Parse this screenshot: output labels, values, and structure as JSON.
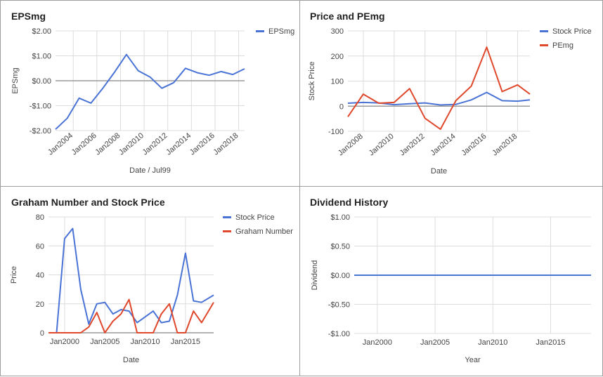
{
  "colors": {
    "blue": "#4a73d6",
    "red": "#e0482c",
    "grid": "#dcdcdc",
    "zero": "#9a9a9a",
    "text": "#444444"
  },
  "chart_data": [
    {
      "type": "line",
      "title": "EPSmg",
      "xlabel": "Date / Jul99",
      "ylabel": "EPSmg",
      "xlim": [
        2002.5,
        2018.5
      ],
      "ylim": [
        -2,
        2
      ],
      "yticks": [
        2,
        1,
        0,
        -1,
        -2
      ],
      "ytick_labels": [
        "$2.00",
        "$1.00",
        "$0.00",
        "-$1.00",
        "-$2.00"
      ],
      "xticks": [
        2004,
        2006,
        2008,
        2010,
        2012,
        2014,
        2016,
        2018
      ],
      "xtick_labels": [
        "Jan2004",
        "Jan2006",
        "Jan2008",
        "Jan2010",
        "Jan2012",
        "Jan2014",
        "Jan2016",
        "Jan2018"
      ],
      "x_tick_rotate": true,
      "legend_position": "top-right",
      "series": [
        {
          "name": "EPSmg",
          "color": "#4a73d6",
          "x": [
            2002.5,
            2003.5,
            2004.5,
            2005.5,
            2006.5,
            2007.5,
            2008.5,
            2009.5,
            2010.5,
            2011.5,
            2012.5,
            2013.5,
            2014.5,
            2015.5,
            2016.5,
            2017.5,
            2018.5
          ],
          "y": [
            -1.95,
            -1.5,
            -0.7,
            -0.9,
            -0.3,
            0.35,
            1.05,
            0.4,
            0.15,
            -0.3,
            -0.08,
            0.5,
            0.32,
            0.22,
            0.37,
            0.25,
            0.48
          ]
        }
      ]
    },
    {
      "type": "line",
      "title": "Price and PEmg",
      "xlabel": "Date",
      "ylabel": "Stock Price",
      "xlim": [
        2007,
        2018.8
      ],
      "ylim": [
        -100,
        300
      ],
      "yticks": [
        300,
        200,
        100,
        0,
        -100
      ],
      "ytick_labels": [
        "300",
        "200",
        "100",
        "0",
        "-100"
      ],
      "xticks": [
        2008,
        2010,
        2012,
        2014,
        2016,
        2018
      ],
      "xtick_labels": [
        "Jan2008",
        "Jan2010",
        "Jan2012",
        "Jan2014",
        "Jan2016",
        "Jan2018"
      ],
      "x_tick_rotate": true,
      "legend_position": "top-right",
      "series": [
        {
          "name": "Stock Price",
          "color": "#4a73d6",
          "x": [
            2007,
            2008,
            2009,
            2010,
            2011,
            2012,
            2013,
            2014,
            2015,
            2016,
            2017,
            2018,
            2018.8
          ],
          "y": [
            12,
            15,
            13,
            6,
            10,
            13,
            5,
            7,
            25,
            55,
            22,
            20,
            25
          ]
        },
        {
          "name": "PEmg",
          "color": "#e0482c",
          "x": [
            2007,
            2008,
            2009,
            2010,
            2011,
            2012,
            2013,
            2014,
            2015,
            2016,
            2017,
            2018,
            2018.8
          ],
          "y": [
            -42,
            48,
            12,
            15,
            70,
            -48,
            -92,
            22,
            80,
            235,
            58,
            85,
            48
          ]
        }
      ]
    },
    {
      "type": "line",
      "title": "Graham Number and Stock Price",
      "xlabel": "Date",
      "ylabel": "Price",
      "xlim": [
        1998,
        2018.5
      ],
      "ylim": [
        0,
        80
      ],
      "yticks": [
        80,
        60,
        40,
        20,
        0
      ],
      "ytick_labels": [
        "80",
        "60",
        "40",
        "20",
        "0"
      ],
      "xticks": [
        2000,
        2005,
        2010,
        2015
      ],
      "xtick_labels": [
        "Jan2000",
        "Jan2005",
        "Jan2010",
        "Jan2015"
      ],
      "x_tick_rotate": false,
      "legend_position": "top-right",
      "series": [
        {
          "name": "Stock Price",
          "color": "#4a73d6",
          "x": [
            1998,
            1999,
            2000,
            2001,
            2002,
            2003,
            2004,
            2005,
            2006,
            2007,
            2008,
            2009,
            2010,
            2011,
            2012,
            2013,
            2014,
            2015,
            2016,
            2017,
            2018.5
          ],
          "y": [
            0,
            0,
            65,
            72,
            30,
            6,
            20,
            21,
            13,
            16,
            15,
            7,
            11,
            15,
            7,
            8,
            26,
            55,
            22,
            21,
            26
          ]
        },
        {
          "name": "Graham Number",
          "color": "#e0482c",
          "x": [
            1998,
            1999,
            2000,
            2001,
            2002,
            2003,
            2004,
            2005,
            2006,
            2007,
            2008,
            2009,
            2010,
            2011,
            2012,
            2013,
            2014,
            2015,
            2016,
            2017,
            2018.5
          ],
          "y": [
            0,
            0,
            0,
            0,
            0,
            4,
            14,
            0,
            8,
            13,
            23,
            0,
            0,
            0,
            13,
            20,
            0,
            0,
            15,
            7,
            21
          ]
        }
      ]
    },
    {
      "type": "line",
      "title": "Dividend History",
      "xlabel": "Year",
      "ylabel": "Dividend",
      "xlim": [
        1998,
        2018.5
      ],
      "ylim": [
        -1,
        1
      ],
      "yticks": [
        1,
        0.5,
        0,
        -0.5,
        -1
      ],
      "ytick_labels": [
        "$1.00",
        "$0.50",
        "$0.00",
        "-$0.50",
        "-$1.00"
      ],
      "xticks": [
        2000,
        2005,
        2010,
        2015
      ],
      "xtick_labels": [
        "Jan2000",
        "Jan2005",
        "Jan2010",
        "Jan2015"
      ],
      "x_tick_rotate": false,
      "legend_position": "none",
      "series": [
        {
          "name": "",
          "color": "#4a73d6",
          "x": [
            1998,
            2018.5
          ],
          "y": [
            0,
            0
          ]
        }
      ]
    }
  ]
}
